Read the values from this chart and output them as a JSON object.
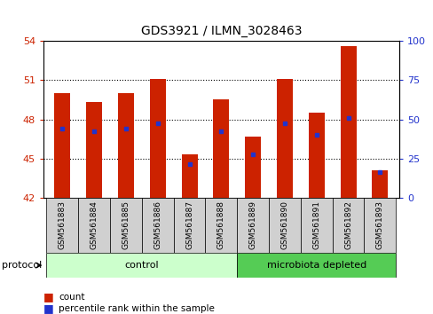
{
  "title": "GDS3921 / ILMN_3028463",
  "samples": [
    "GSM561883",
    "GSM561884",
    "GSM561885",
    "GSM561886",
    "GSM561887",
    "GSM561888",
    "GSM561889",
    "GSM561890",
    "GSM561891",
    "GSM561892",
    "GSM561893"
  ],
  "bar_tops": [
    50.0,
    49.3,
    50.0,
    51.1,
    45.3,
    49.5,
    46.7,
    51.1,
    48.5,
    53.6,
    44.1
  ],
  "blue_values": [
    47.3,
    47.1,
    47.3,
    47.7,
    44.6,
    47.1,
    45.3,
    47.7,
    46.8,
    48.1,
    44.0
  ],
  "bar_bottom": 42,
  "ylim_left": [
    42,
    54
  ],
  "ylim_right": [
    0,
    100
  ],
  "yticks_left": [
    42,
    45,
    48,
    51,
    54
  ],
  "yticks_right": [
    0,
    25,
    50,
    75,
    100
  ],
  "bar_color": "#cc2200",
  "blue_color": "#2233cc",
  "control_samples": 6,
  "control_label": "control",
  "treatment_label": "microbiota depleted",
  "protocol_label": "protocol",
  "legend_count": "count",
  "legend_percentile": "percentile rank within the sample",
  "control_bg": "#ccffcc",
  "treatment_bg": "#55cc55",
  "sample_bg": "#d0d0d0",
  "figsize": [
    4.89,
    3.54
  ],
  "dpi": 100
}
